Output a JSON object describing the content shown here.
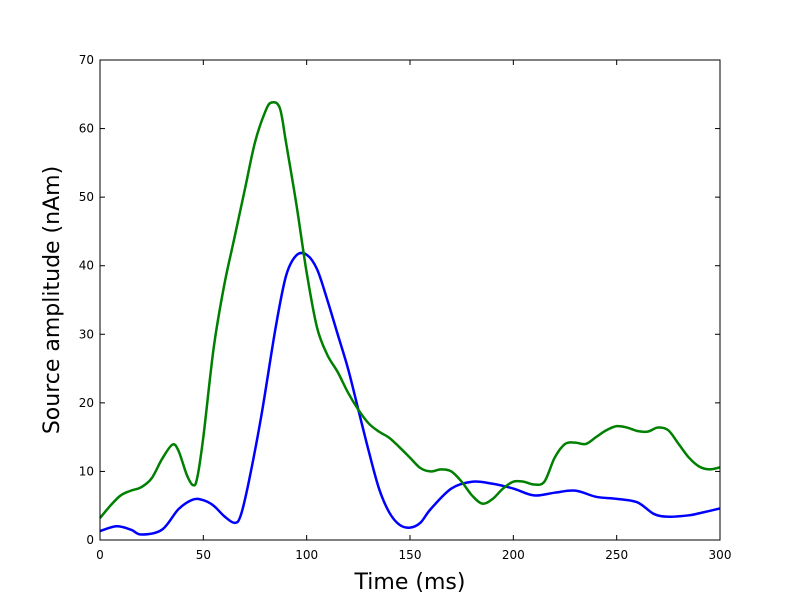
{
  "chart_data": {
    "type": "line",
    "title": "",
    "xlabel": "Time (ms)",
    "ylabel": "Source amplitude (nAm)",
    "xlim": [
      0,
      300
    ],
    "ylim": [
      0,
      70
    ],
    "xticks": [
      0,
      50,
      100,
      150,
      200,
      250,
      300
    ],
    "yticks": [
      0,
      10,
      20,
      30,
      40,
      50,
      60,
      70
    ],
    "grid": false,
    "series": [
      {
        "color": "#0000ff",
        "x": [
          0,
          8,
          15,
          20,
          30,
          38,
          45,
          50,
          55,
          60,
          65,
          68,
          72,
          78,
          85,
          90,
          95,
          100,
          105,
          110,
          115,
          120,
          125,
          130,
          135,
          140,
          145,
          150,
          155,
          160,
          170,
          180,
          190,
          200,
          210,
          220,
          230,
          240,
          250,
          260,
          268,
          275,
          285,
          290,
          300
        ],
        "y": [
          1.3,
          2.0,
          1.5,
          0.8,
          1.5,
          4.5,
          5.9,
          5.8,
          5.0,
          3.5,
          2.5,
          3.5,
          8.5,
          18.0,
          31.0,
          38.5,
          41.5,
          41.6,
          39.5,
          35.0,
          30.0,
          25.0,
          19.0,
          13.0,
          7.5,
          4.0,
          2.2,
          1.8,
          2.5,
          4.5,
          7.5,
          8.5,
          8.2,
          7.5,
          6.5,
          6.9,
          7.2,
          6.3,
          6.0,
          5.5,
          3.8,
          3.4,
          3.6,
          3.9,
          4.6
        ]
      },
      {
        "color": "#008000",
        "x": [
          0,
          5,
          10,
          15,
          20,
          25,
          30,
          35,
          38,
          42,
          45,
          47,
          50,
          55,
          60,
          65,
          70,
          75,
          80,
          83,
          87,
          90,
          95,
          100,
          105,
          110,
          115,
          120,
          125,
          130,
          135,
          140,
          145,
          150,
          155,
          160,
          165,
          170,
          175,
          180,
          185,
          190,
          195,
          200,
          205,
          210,
          215,
          220,
          225,
          230,
          235,
          240,
          245,
          250,
          255,
          260,
          265,
          270,
          275,
          280,
          285,
          290,
          295,
          300
        ],
        "y": [
          3.2,
          5.0,
          6.5,
          7.2,
          7.7,
          9.0,
          11.8,
          13.9,
          13.0,
          9.5,
          8.0,
          9.0,
          15.0,
          28.0,
          37.0,
          44.0,
          51.0,
          58.0,
          62.5,
          63.8,
          63.0,
          58.0,
          49.0,
          39.0,
          31.0,
          27.0,
          24.5,
          21.5,
          19.0,
          17.0,
          15.8,
          14.9,
          13.5,
          12.0,
          10.5,
          10.0,
          10.3,
          10.0,
          8.5,
          6.5,
          5.3,
          6.0,
          7.5,
          8.5,
          8.5,
          8.1,
          8.5,
          12.0,
          14.0,
          14.2,
          14.0,
          15.0,
          16.0,
          16.6,
          16.4,
          15.9,
          15.8,
          16.4,
          16.0,
          14.0,
          12.0,
          10.7,
          10.3,
          10.6
        ]
      }
    ]
  }
}
